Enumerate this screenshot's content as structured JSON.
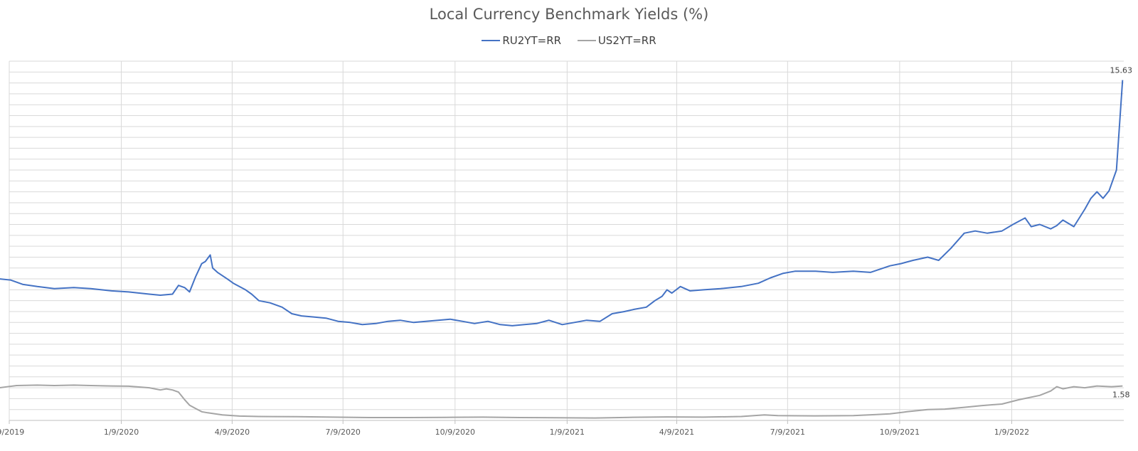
{
  "chart_data": {
    "type": "line",
    "title": "Local Currency Benchmark Yields (%)",
    "xlabel": "",
    "ylabel": "",
    "x_ticks": [
      "/9/2019",
      "1/9/2020",
      "4/9/2020",
      "7/9/2020",
      "10/9/2020",
      "1/9/2021",
      "4/9/2021",
      "7/9/2021",
      "10/9/2021",
      "1/9/2022"
    ],
    "ylim": [
      0,
      16.5
    ],
    "grid": true,
    "legend": "top-center",
    "series": [
      {
        "name": "RU2YT=RR",
        "color": "#4472C4",
        "end_label": "15.63",
        "points": [
          [
            "2019-10-01",
            6.5
          ],
          [
            "2019-10-10",
            6.45
          ],
          [
            "2019-10-20",
            6.25
          ],
          [
            "2019-11-01",
            6.15
          ],
          [
            "2019-11-15",
            6.05
          ],
          [
            "2019-12-01",
            6.1
          ],
          [
            "2019-12-15",
            6.05
          ],
          [
            "2020-01-01",
            5.95
          ],
          [
            "2020-01-15",
            5.9
          ],
          [
            "2020-02-01",
            5.8
          ],
          [
            "2020-02-10",
            5.75
          ],
          [
            "2020-02-20",
            5.8
          ],
          [
            "2020-02-25",
            6.2
          ],
          [
            "2020-03-01",
            6.1
          ],
          [
            "2020-03-05",
            5.9
          ],
          [
            "2020-03-10",
            6.6
          ],
          [
            "2020-03-15",
            7.2
          ],
          [
            "2020-03-18",
            7.3
          ],
          [
            "2020-03-22",
            7.6
          ],
          [
            "2020-03-24",
            7.0
          ],
          [
            "2020-03-28",
            6.8
          ],
          [
            "2020-04-05",
            6.5
          ],
          [
            "2020-04-10",
            6.3
          ],
          [
            "2020-04-20",
            6.0
          ],
          [
            "2020-04-25",
            5.8
          ],
          [
            "2020-05-01",
            5.5
          ],
          [
            "2020-05-10",
            5.4
          ],
          [
            "2020-05-20",
            5.2
          ],
          [
            "2020-05-28",
            4.9
          ],
          [
            "2020-06-05",
            4.8
          ],
          [
            "2020-06-15",
            4.75
          ],
          [
            "2020-06-25",
            4.7
          ],
          [
            "2020-07-05",
            4.55
          ],
          [
            "2020-07-15",
            4.5
          ],
          [
            "2020-07-25",
            4.4
          ],
          [
            "2020-08-05",
            4.45
          ],
          [
            "2020-08-15",
            4.55
          ],
          [
            "2020-08-25",
            4.6
          ],
          [
            "2020-09-05",
            4.5
          ],
          [
            "2020-09-15",
            4.55
          ],
          [
            "2020-09-25",
            4.6
          ],
          [
            "2020-10-05",
            4.65
          ],
          [
            "2020-10-15",
            4.55
          ],
          [
            "2020-10-25",
            4.45
          ],
          [
            "2020-11-05",
            4.55
          ],
          [
            "2020-11-15",
            4.4
          ],
          [
            "2020-11-25",
            4.35
          ],
          [
            "2020-12-05",
            4.4
          ],
          [
            "2020-12-15",
            4.45
          ],
          [
            "2020-12-25",
            4.6
          ],
          [
            "2021-01-05",
            4.4
          ],
          [
            "2021-01-15",
            4.5
          ],
          [
            "2021-01-25",
            4.6
          ],
          [
            "2021-02-05",
            4.55
          ],
          [
            "2021-02-15",
            4.9
          ],
          [
            "2021-02-25",
            5.0
          ],
          [
            "2021-03-05",
            5.1
          ],
          [
            "2021-03-15",
            5.2
          ],
          [
            "2021-03-22",
            5.5
          ],
          [
            "2021-03-28",
            5.7
          ],
          [
            "2021-04-01",
            6.0
          ],
          [
            "2021-04-05",
            5.85
          ],
          [
            "2021-04-12",
            6.15
          ],
          [
            "2021-04-20",
            5.95
          ],
          [
            "2021-05-01",
            6.0
          ],
          [
            "2021-05-15",
            6.05
          ],
          [
            "2021-06-01",
            6.15
          ],
          [
            "2021-06-15",
            6.3
          ],
          [
            "2021-06-25",
            6.55
          ],
          [
            "2021-07-05",
            6.75
          ],
          [
            "2021-07-15",
            6.85
          ],
          [
            "2021-08-01",
            6.85
          ],
          [
            "2021-08-15",
            6.8
          ],
          [
            "2021-09-01",
            6.85
          ],
          [
            "2021-09-15",
            6.8
          ],
          [
            "2021-10-01",
            7.1
          ],
          [
            "2021-10-10",
            7.2
          ],
          [
            "2021-10-20",
            7.35
          ],
          [
            "2021-11-01",
            7.5
          ],
          [
            "2021-11-10",
            7.35
          ],
          [
            "2021-11-20",
            7.9
          ],
          [
            "2021-12-01",
            8.6
          ],
          [
            "2021-12-10",
            8.7
          ],
          [
            "2021-12-20",
            8.6
          ],
          [
            "2022-01-01",
            8.7
          ],
          [
            "2022-01-10",
            9.0
          ],
          [
            "2022-01-20",
            9.3
          ],
          [
            "2022-01-25",
            8.9
          ],
          [
            "2022-02-01",
            9.0
          ],
          [
            "2022-02-10",
            8.8
          ],
          [
            "2022-02-15",
            8.95
          ],
          [
            "2022-02-20",
            9.2
          ],
          [
            "2022-03-01",
            8.9
          ],
          [
            "2022-03-10",
            9.7
          ],
          [
            "2022-03-15",
            10.2
          ],
          [
            "2022-03-20",
            10.5
          ],
          [
            "2022-03-25",
            10.2
          ],
          [
            "2022-03-30",
            10.55
          ],
          [
            "2022-04-05",
            11.5
          ],
          [
            "2022-04-10",
            15.63
          ]
        ]
      },
      {
        "name": "US2YT=RR",
        "color": "#A5A5A5",
        "end_label": "1.58",
        "points": [
          [
            "2019-10-01",
            1.5
          ],
          [
            "2019-10-15",
            1.6
          ],
          [
            "2019-11-01",
            1.62
          ],
          [
            "2019-11-15",
            1.6
          ],
          [
            "2019-12-01",
            1.62
          ],
          [
            "2019-12-15",
            1.6
          ],
          [
            "2020-01-01",
            1.58
          ],
          [
            "2020-01-15",
            1.57
          ],
          [
            "2020-02-01",
            1.5
          ],
          [
            "2020-02-10",
            1.4
          ],
          [
            "2020-02-15",
            1.45
          ],
          [
            "2020-02-20",
            1.4
          ],
          [
            "2020-02-25",
            1.3
          ],
          [
            "2020-03-01",
            0.95
          ],
          [
            "2020-03-05",
            0.7
          ],
          [
            "2020-03-10",
            0.55
          ],
          [
            "2020-03-15",
            0.4
          ],
          [
            "2020-03-20",
            0.35
          ],
          [
            "2020-04-01",
            0.25
          ],
          [
            "2020-04-15",
            0.2
          ],
          [
            "2020-05-01",
            0.18
          ],
          [
            "2020-06-01",
            0.17
          ],
          [
            "2020-07-01",
            0.15
          ],
          [
            "2020-08-01",
            0.13
          ],
          [
            "2020-09-01",
            0.13
          ],
          [
            "2020-10-01",
            0.14
          ],
          [
            "2020-11-01",
            0.15
          ],
          [
            "2020-12-01",
            0.13
          ],
          [
            "2021-01-01",
            0.12
          ],
          [
            "2021-02-01",
            0.11
          ],
          [
            "2021-03-01",
            0.14
          ],
          [
            "2021-04-01",
            0.16
          ],
          [
            "2021-05-01",
            0.15
          ],
          [
            "2021-06-01",
            0.18
          ],
          [
            "2021-06-20",
            0.25
          ],
          [
            "2021-07-01",
            0.22
          ],
          [
            "2021-08-01",
            0.21
          ],
          [
            "2021-09-01",
            0.22
          ],
          [
            "2021-09-20",
            0.27
          ],
          [
            "2021-10-01",
            0.3
          ],
          [
            "2021-10-15",
            0.4
          ],
          [
            "2021-11-01",
            0.5
          ],
          [
            "2021-11-15",
            0.52
          ],
          [
            "2021-12-01",
            0.6
          ],
          [
            "2021-12-15",
            0.68
          ],
          [
            "2022-01-01",
            0.75
          ],
          [
            "2022-01-15",
            0.95
          ],
          [
            "2022-02-01",
            1.15
          ],
          [
            "2022-02-10",
            1.35
          ],
          [
            "2022-02-15",
            1.55
          ],
          [
            "2022-02-20",
            1.45
          ],
          [
            "2022-03-01",
            1.55
          ],
          [
            "2022-03-10",
            1.5
          ],
          [
            "2022-03-20",
            1.58
          ],
          [
            "2022-04-01",
            1.55
          ],
          [
            "2022-04-10",
            1.58
          ]
        ]
      }
    ]
  }
}
